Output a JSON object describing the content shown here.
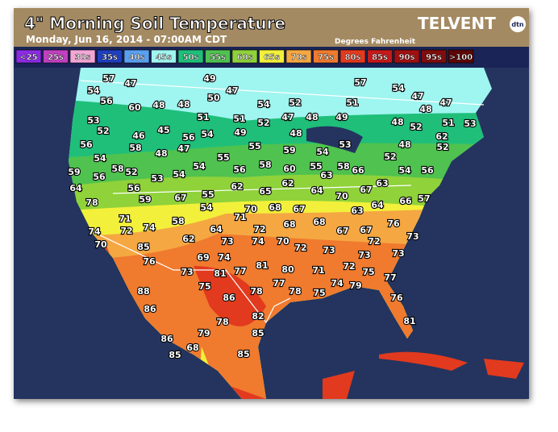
{
  "header": {
    "title": "4\" Morning Soil Temperature",
    "subtitle": "Monday, Jun 16, 2014 - 07:00AM CDT",
    "units": "Degrees Fahrenheit",
    "logo": "TELVENT",
    "logo_mark": "dtn"
  },
  "legend": [
    {
      "label": "<25",
      "color": "#8a2be2"
    },
    {
      "label": "25s",
      "color": "#c040c0"
    },
    {
      "label": "30s",
      "color": "#f4a6d7"
    },
    {
      "label": "35s",
      "color": "#1f3fbf"
    },
    {
      "label": "40s",
      "color": "#5aa0f0"
    },
    {
      "label": "45s",
      "color": "#9ff5f0"
    },
    {
      "label": "50s",
      "color": "#1fbf7a"
    },
    {
      "label": "55s",
      "color": "#4fc24f"
    },
    {
      "label": "60s",
      "color": "#8fd23a"
    },
    {
      "label": "65s",
      "color": "#f2f03a"
    },
    {
      "label": "70s",
      "color": "#f5a742"
    },
    {
      "label": "75s",
      "color": "#f07a2e"
    },
    {
      "label": "80s",
      "color": "#e23a1e"
    },
    {
      "label": "85s",
      "color": "#c41a1a"
    },
    {
      "label": "90s",
      "color": "#a01010"
    },
    {
      "label": "95s",
      "color": "#800c0c"
    },
    {
      "label": ">100",
      "color": "#5c0606"
    }
  ],
  "stations": [
    57,
    47,
    49,
    57,
    54,
    56,
    50,
    47,
    54,
    47,
    47,
    53,
    60,
    48,
    48,
    54,
    52,
    51,
    48,
    52,
    51,
    51,
    52,
    47,
    48,
    49,
    48,
    52,
    51,
    53,
    56,
    46,
    45,
    56,
    54,
    49,
    48,
    62,
    54,
    58,
    48,
    47,
    55,
    55,
    59,
    54,
    53,
    52,
    48,
    52,
    58,
    52,
    53,
    54,
    54,
    56,
    58,
    60,
    55,
    58,
    66,
    63,
    54,
    56,
    59,
    56,
    64,
    78,
    56,
    59,
    67,
    55,
    54,
    62,
    65,
    62,
    64,
    70,
    67,
    63,
    66,
    57,
    71,
    58,
    71,
    70,
    68,
    67,
    68,
    63,
    64,
    76,
    74,
    72,
    74,
    64,
    73,
    72,
    74,
    70,
    72,
    68,
    67,
    67,
    72,
    73,
    70,
    85,
    62,
    69,
    74,
    73,
    73,
    73,
    76,
    73,
    81,
    77,
    81,
    80,
    71,
    72,
    75,
    77,
    88,
    75,
    77,
    78,
    75,
    74,
    79,
    86,
    86,
    78,
    76,
    82,
    78,
    81,
    86,
    79,
    85,
    85,
    68,
    85
  ]
}
